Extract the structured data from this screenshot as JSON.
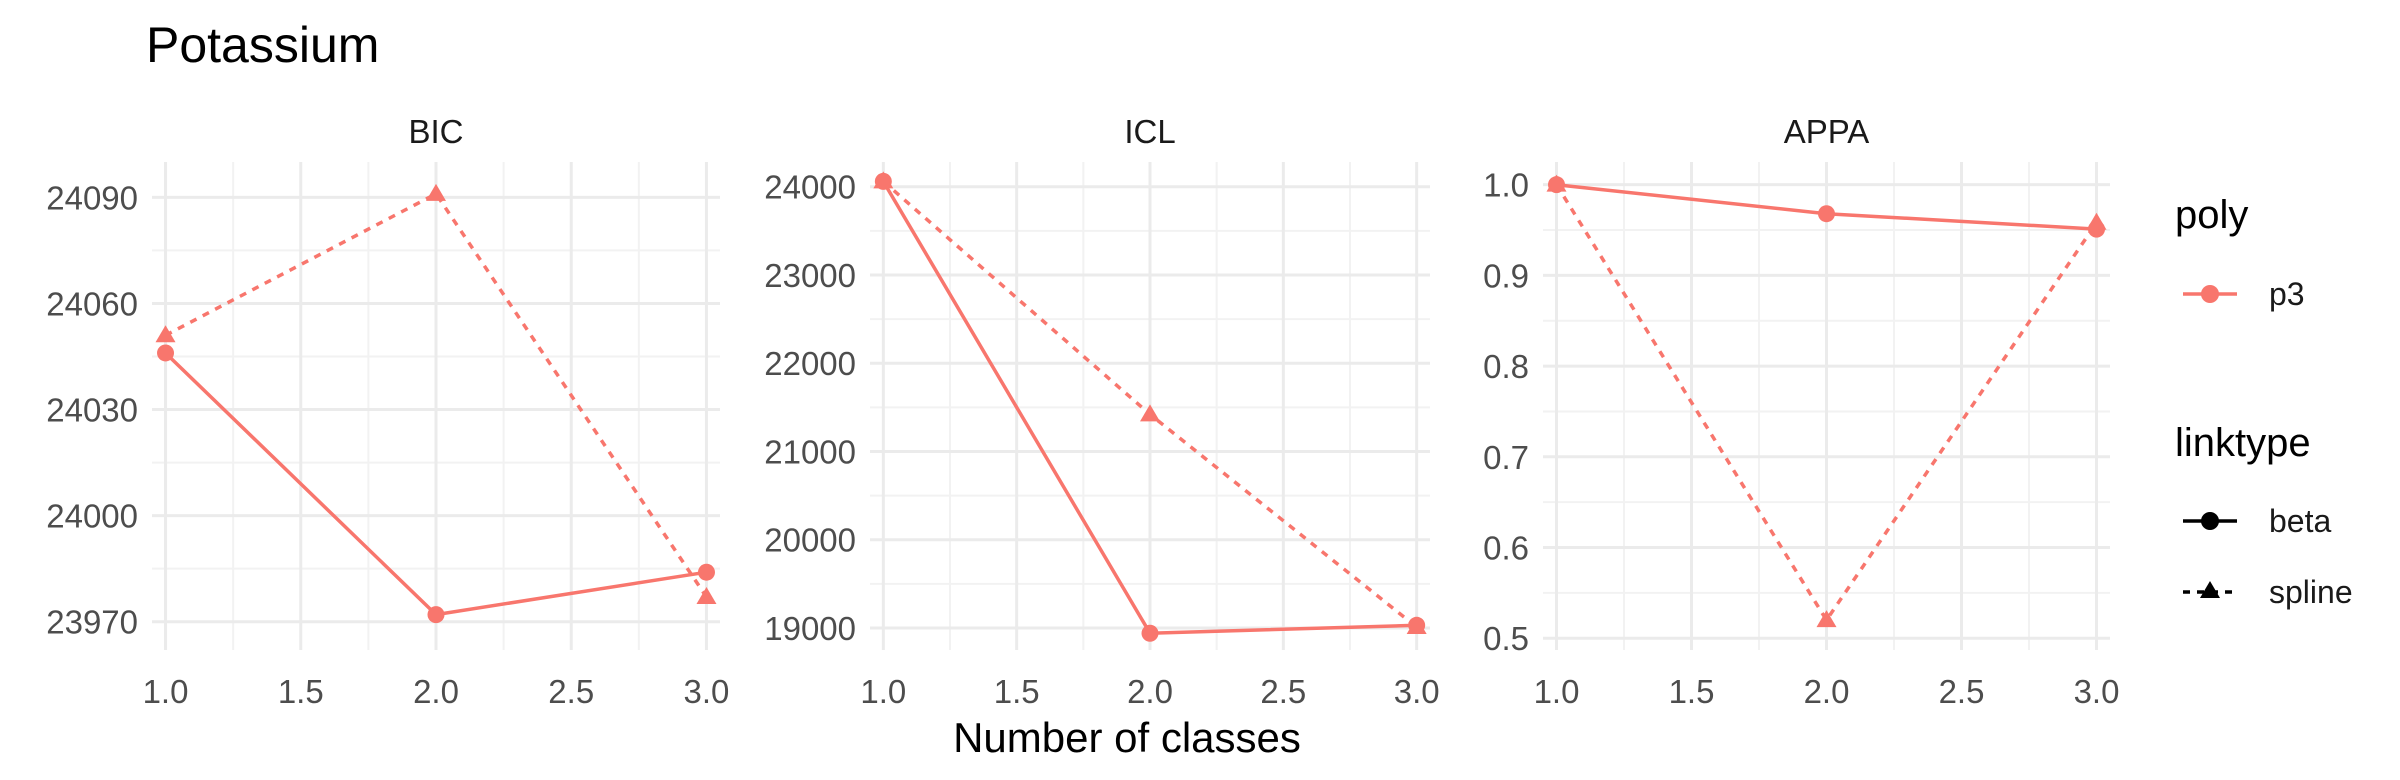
{
  "chart_data": {
    "type": "line",
    "title": "Potassium",
    "xlabel": "Number of classes",
    "colors": {
      "series": "#f8766d",
      "grid_major": "#ebebeb",
      "grid_minor": "#f2f2f2"
    },
    "grid": true,
    "legend_position": "right",
    "legends": {
      "poly": {
        "title": "poly",
        "items": [
          {
            "label": "p3"
          }
        ]
      },
      "linktype": {
        "title": "linktype",
        "items": [
          {
            "label": "beta",
            "line": "solid",
            "marker": "circle"
          },
          {
            "label": "spline",
            "line": "dashed",
            "marker": "triangle"
          }
        ]
      }
    },
    "panels": [
      {
        "name": "BIC",
        "xlim": [
          0.95,
          3.05
        ],
        "ylim": [
          23962,
          24100
        ],
        "xticks": [
          1.0,
          1.5,
          2.0,
          2.5,
          3.0
        ],
        "xtick_labels": [
          "1.0",
          "1.5",
          "2.0",
          "2.5",
          "3.0"
        ],
        "yticks": [
          23970,
          24000,
          24030,
          24060,
          24090
        ],
        "ytick_labels": [
          "23970",
          "24000",
          "24030",
          "24060",
          "24090"
        ],
        "series": [
          {
            "linktype": "beta",
            "x": [
              1,
              2,
              3
            ],
            "y": [
              24046,
              23972,
              23984
            ]
          },
          {
            "linktype": "spline",
            "x": [
              1,
              2,
              3
            ],
            "y": [
              24051,
              24091,
              23977
            ]
          }
        ]
      },
      {
        "name": "ICL",
        "xlim": [
          0.95,
          3.05
        ],
        "ylim": [
          18750,
          24280
        ],
        "xticks": [
          1.0,
          1.5,
          2.0,
          2.5,
          3.0
        ],
        "xtick_labels": [
          "1.0",
          "1.5",
          "2.0",
          "2.5",
          "3.0"
        ],
        "yticks": [
          19000,
          20000,
          21000,
          22000,
          23000,
          24000
        ],
        "ytick_labels": [
          "19000",
          "20000",
          "21000",
          "22000",
          "23000",
          "24000"
        ],
        "series": [
          {
            "linktype": "beta",
            "x": [
              1,
              2,
              3
            ],
            "y": [
              24060,
              18940,
              19030
            ]
          },
          {
            "linktype": "spline",
            "x": [
              1,
              2,
              3
            ],
            "y": [
              24060,
              21420,
              19010
            ]
          }
        ]
      },
      {
        "name": "APPA",
        "xlim": [
          0.95,
          3.05
        ],
        "ylim": [
          0.487,
          1.025
        ],
        "xticks": [
          1.0,
          1.5,
          2.0,
          2.5,
          3.0
        ],
        "xtick_labels": [
          "1.0",
          "1.5",
          "2.0",
          "2.5",
          "3.0"
        ],
        "yticks": [
          0.5,
          0.6,
          0.7,
          0.8,
          0.9,
          1.0
        ],
        "ytick_labels": [
          "0.5",
          "0.6",
          "0.7",
          "0.8",
          "0.9",
          "1.0"
        ],
        "series": [
          {
            "linktype": "beta",
            "x": [
              1,
              2,
              3
            ],
            "y": [
              1.0,
              0.968,
              0.951
            ]
          },
          {
            "linktype": "spline",
            "x": [
              1,
              2,
              3
            ],
            "y": [
              1.0,
              0.52,
              0.958
            ]
          }
        ]
      }
    ]
  }
}
